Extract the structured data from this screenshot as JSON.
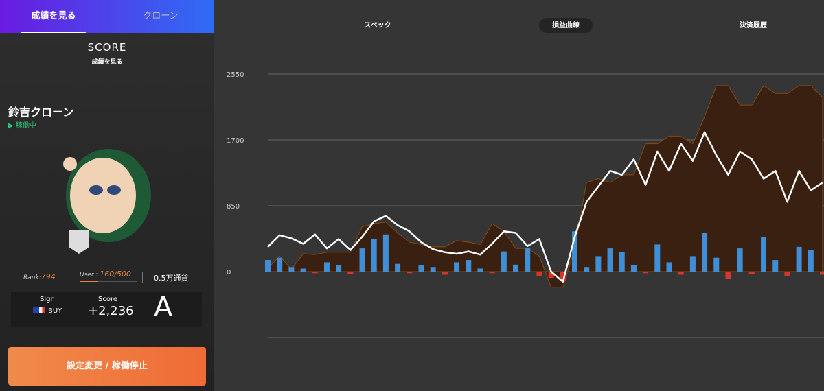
{
  "sidebar": {
    "tabs": [
      "成績を見る",
      "クローン"
    ],
    "score_title": "SCORE",
    "score_subtitle": "成績を見る",
    "clone_name": "鈴吉クローン",
    "status": "稼働中",
    "rank_label": "Rank:",
    "rank": "794",
    "user_label": "User :",
    "user": "160/500",
    "lot": "0.5万通貨",
    "sign_label": "Sign",
    "sign": "BUY",
    "score_label": "Score",
    "score": "+2,236",
    "grade": "A",
    "button": "設定変更 / 稼働停止"
  },
  "chart_tabs": [
    "スペック",
    "損益曲線",
    "決済履歴"
  ],
  "chart_data": {
    "type": "combo",
    "categories": [
      null,
      null,
      null,
      null,
      null,
      null,
      null,
      null,
      null,
      null,
      null,
      null,
      null,
      null,
      null,
      null,
      null,
      null,
      null,
      null,
      null,
      null,
      null,
      null,
      null,
      null,
      null,
      null,
      null,
      null,
      null,
      null,
      null,
      null,
      null,
      null,
      null,
      null,
      null,
      null,
      null,
      null,
      null,
      null,
      null,
      null,
      null,
      null
    ],
    "ylim": [
      -850,
      2550
    ],
    "yticks": [
      0,
      850,
      1700,
      2550
    ],
    "grid": true,
    "area": {
      "values": [
        40,
        200,
        30,
        230,
        220,
        250,
        250,
        250,
        580,
        620,
        640,
        500,
        380,
        350,
        320,
        320,
        400,
        380,
        350,
        620,
        520,
        300,
        300,
        200,
        -200,
        -200,
        300,
        1150,
        1200,
        1150,
        1250,
        1250,
        1650,
        1650,
        1750,
        1750,
        1650,
        2000,
        2400,
        2400,
        2150,
        2150,
        2400,
        2300,
        2300,
        2400,
        2400,
        2250
      ],
      "color": "#c24a0a",
      "top_color": "#e0a000"
    },
    "line": {
      "values": [
        320,
        470,
        430,
        360,
        480,
        300,
        420,
        280,
        450,
        650,
        720,
        600,
        520,
        380,
        290,
        250,
        230,
        260,
        220,
        360,
        520,
        500,
        330,
        420,
        0,
        -130,
        450,
        900,
        1100,
        1300,
        1250,
        1450,
        1120,
        1550,
        1300,
        1650,
        1430,
        1800,
        1500,
        1250,
        1550,
        1450,
        1200,
        1300,
        900,
        1300,
        1050,
        1150
      ],
      "color": "#ffffff"
    },
    "bars": {
      "values": [
        150,
        180,
        60,
        40,
        -20,
        120,
        80,
        -30,
        300,
        420,
        480,
        100,
        -20,
        80,
        60,
        -40,
        120,
        150,
        40,
        -20,
        260,
        90,
        300,
        -60,
        -80,
        -120,
        520,
        60,
        200,
        300,
        250,
        80,
        -20,
        350,
        120,
        -40,
        200,
        500,
        180,
        -90,
        300,
        -30,
        450,
        150,
        -60,
        320,
        280,
        -40
      ],
      "color": "#3f8fd8",
      "negative_color": "#d9362b"
    }
  }
}
